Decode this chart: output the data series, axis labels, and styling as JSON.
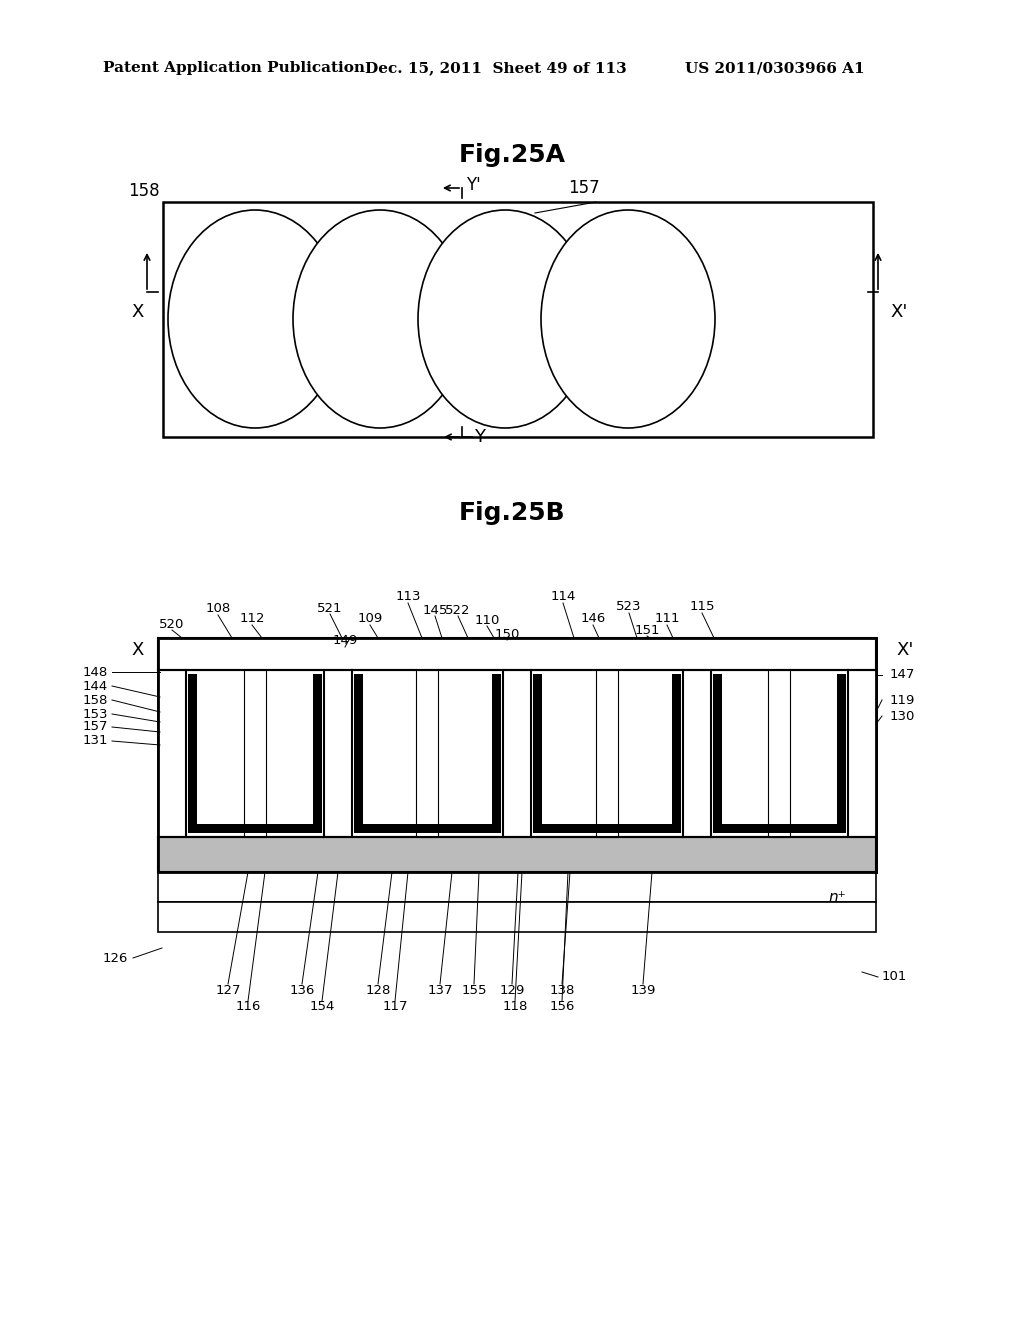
{
  "header_left": "Patent Application Publication",
  "header_mid": "Dec. 15, 2011  Sheet 49 of 113",
  "header_right": "US 2011/0303966 A1",
  "fig25a_title": "Fig.25A",
  "fig25b_title": "Fig.25B",
  "bg_color": "#ffffff"
}
